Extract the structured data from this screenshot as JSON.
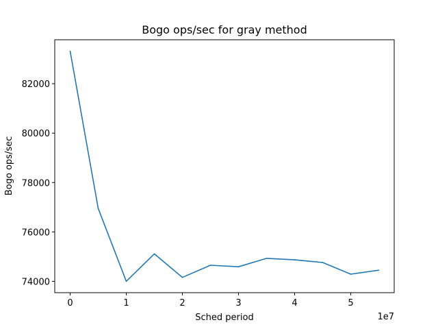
{
  "chart_data": {
    "type": "line",
    "title": "Bogo ops/sec for gray method",
    "xlabel": "Sched period",
    "ylabel": "Bogo ops/sec",
    "x_offset_label": "1e7",
    "x_tick_values": [
      0,
      1,
      2,
      3,
      4,
      5
    ],
    "x_tick_labels": [
      "0",
      "1",
      "2",
      "3",
      "4",
      "5"
    ],
    "y_tick_values": [
      74000,
      76000,
      78000,
      80000,
      82000
    ],
    "y_tick_labels": [
      "74000",
      "76000",
      "78000",
      "80000",
      "82000"
    ],
    "xlim": [
      -0.275,
      5.775
    ],
    "ylim": [
      73540,
      83780
    ],
    "grid": false,
    "series": [
      {
        "color": "#1f77b4",
        "x": [
          0,
          0.5,
          1,
          1.5,
          2,
          2.5,
          3,
          3.5,
          4,
          4.5,
          5,
          5.5
        ],
        "y": [
          83320,
          76950,
          74000,
          75110,
          74160,
          74650,
          74590,
          74930,
          74870,
          74760,
          74290,
          74450
        ]
      }
    ]
  }
}
